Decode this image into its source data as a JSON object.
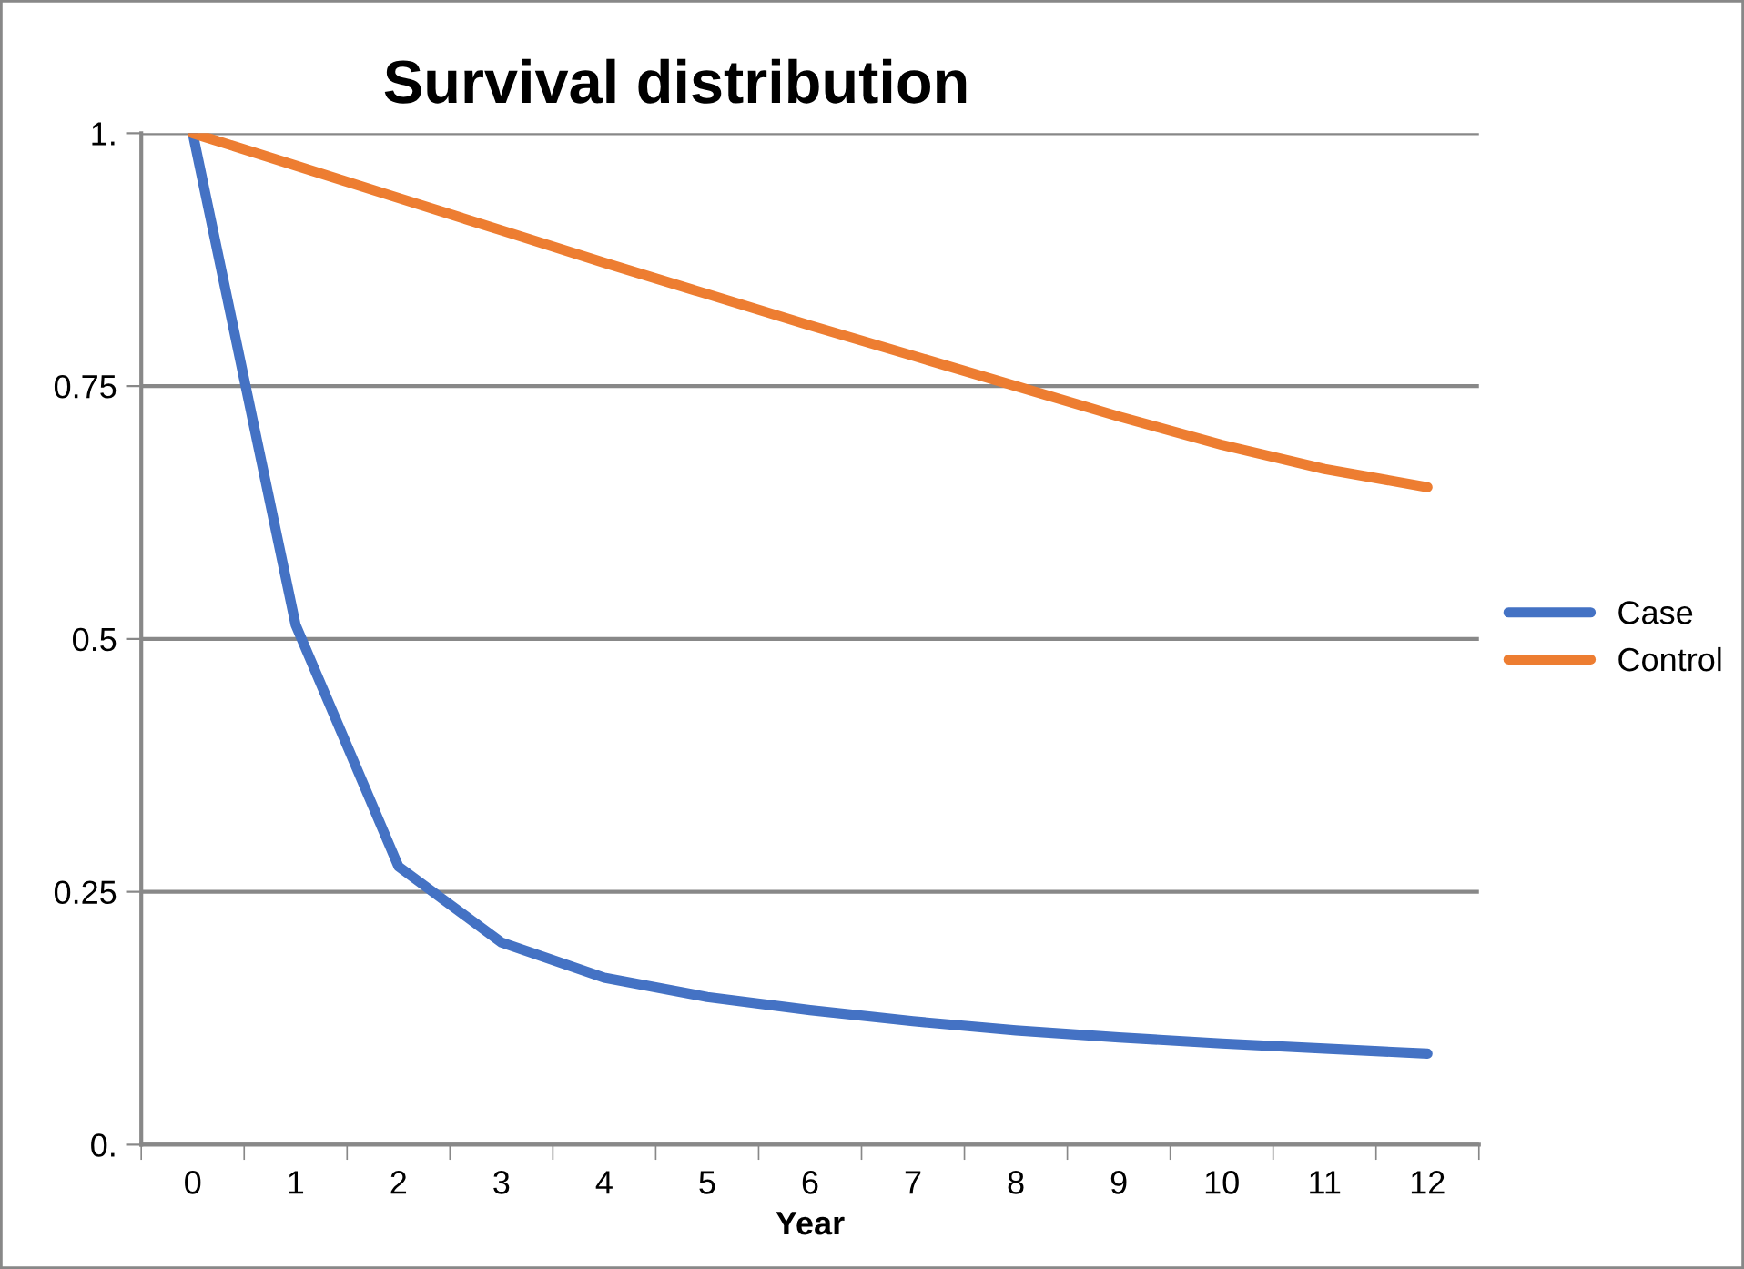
{
  "chart_data": {
    "type": "line",
    "title": "Survival distribution",
    "xlabel": "Year",
    "categories": [
      "0",
      "1",
      "2",
      "3",
      "4",
      "5",
      "6",
      "7",
      "8",
      "9",
      "10",
      "11",
      "12"
    ],
    "series": [
      {
        "name": "Case",
        "color": "#4472c4",
        "values": [
          1,
          0.514,
          0.275,
          0.2,
          0.165,
          0.146,
          0.133,
          0.122,
          0.113,
          0.106,
          0.1,
          0.095,
          0.09
        ]
      },
      {
        "name": "Control",
        "color": "#ed7d31",
        "values": [
          1,
          0.968,
          0.936,
          0.904,
          0.872,
          0.841,
          0.81,
          0.78,
          0.75,
          0.72,
          0.692,
          0.668,
          0.65
        ]
      }
    ],
    "ylim": [
      0,
      1
    ],
    "yticks": [
      {
        "value": 0,
        "label": "0."
      },
      {
        "value": 0.25,
        "label": "0.25"
      },
      {
        "value": 0.5,
        "label": "0.5"
      },
      {
        "value": 0.75,
        "label": "0.75"
      },
      {
        "value": 1,
        "label": "1."
      }
    ],
    "grid": "y",
    "legend": "right",
    "marker": "none",
    "line_style": "solid"
  }
}
